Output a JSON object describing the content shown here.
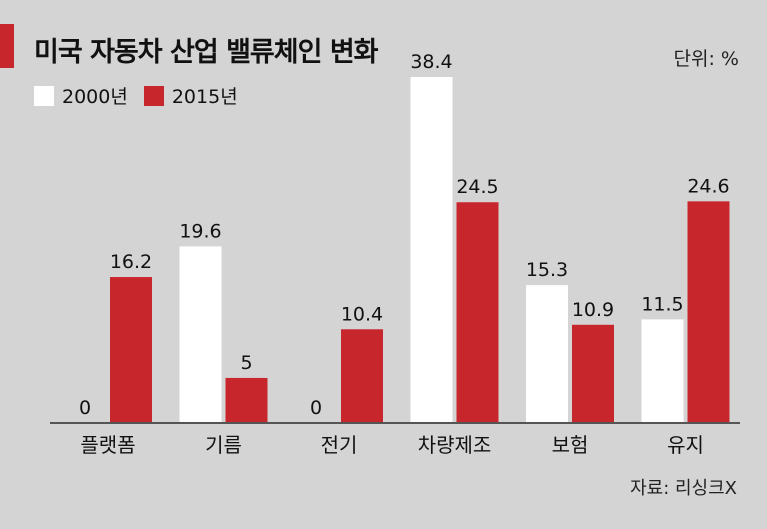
{
  "title": "미국 자동차 산업 밸류체인 변화",
  "unit_label": "단위: %",
  "source": "자료: 리싱크X",
  "colors": {
    "accent": "#c8262d",
    "series_2000": "#ffffff",
    "series_2015": "#c8262d",
    "background": "#d4d4d4"
  },
  "chart_data": {
    "type": "bar",
    "categories": [
      "플랫폼",
      "기름",
      "전기",
      "차량제조",
      "보험",
      "유지"
    ],
    "series": [
      {
        "name": "2000년",
        "values": [
          0,
          19.6,
          0,
          38.4,
          15.3,
          11.5
        ],
        "labels": [
          "0",
          "19.6",
          "0",
          "38.4",
          "15.3",
          "11.5"
        ]
      },
      {
        "name": "2015년",
        "values": [
          16.2,
          5,
          10.4,
          24.5,
          10.9,
          24.6
        ],
        "labels": [
          "16.2",
          "5",
          "10.4",
          "24.5",
          "10.9",
          "24.6"
        ]
      }
    ],
    "ylim": [
      0,
      40
    ],
    "grid": false,
    "legend": "top-left"
  }
}
